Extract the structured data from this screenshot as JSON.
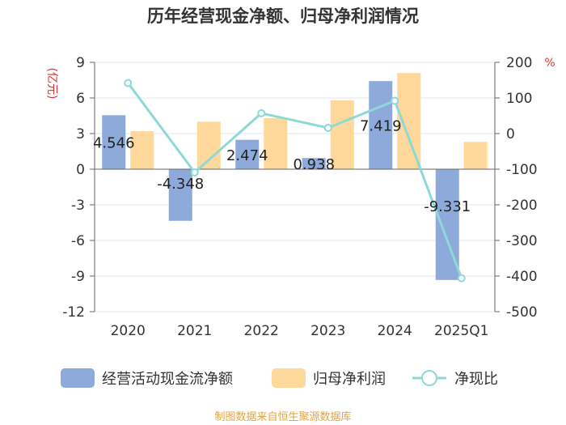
{
  "chart_data": {
    "type": "bar",
    "title": "历年经营现金净额、归母净利润情况",
    "categories": [
      "2020",
      "2021",
      "2022",
      "2023",
      "2024",
      "2025Q1"
    ],
    "left_axis": {
      "label": "(亿元)",
      "ticks": [
        9,
        6,
        3,
        0,
        -3,
        -6,
        -9,
        -12
      ],
      "range": [
        -12,
        9
      ]
    },
    "right_axis": {
      "label": "%",
      "ticks": [
        200,
        100,
        0,
        -100,
        -200,
        -300,
        -400,
        -500
      ],
      "range": [
        -500,
        200
      ]
    },
    "series": [
      {
        "name": "经营活动现金流净额",
        "type": "bar",
        "axis": "left",
        "color": "#8eaadb",
        "values": [
          4.546,
          -4.348,
          2.474,
          0.938,
          7.419,
          -9.331
        ],
        "labels": [
          "4.546",
          "-4.348",
          "2.474",
          "0.938",
          "7.419",
          "-9.331"
        ]
      },
      {
        "name": "归母净利润",
        "type": "bar",
        "axis": "left",
        "color": "#ffd89b",
        "values": [
          3.2,
          4.0,
          4.3,
          5.8,
          8.1,
          2.3
        ]
      },
      {
        "name": "净现比",
        "type": "line",
        "axis": "right",
        "color": "#8ed8d8",
        "values": [
          142,
          -109,
          57,
          16,
          92,
          -406
        ]
      }
    ],
    "grid": true,
    "legend_position": "bottom"
  },
  "footer": {
    "source": "制图数据来自恒生聚源数据库"
  },
  "colors": {
    "unit_red": "#e03030",
    "source_orange": "#e8a33a"
  }
}
